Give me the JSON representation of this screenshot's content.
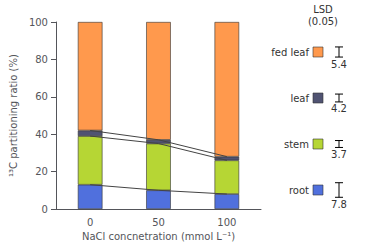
{
  "chart_data": {
    "type": "bar",
    "stacked": true,
    "categories": [
      "0",
      "50",
      "100"
    ],
    "xlabel": "NaCl concnetration (mmol L⁻¹)",
    "ylabel": "¹³C partitioning ratio (%)",
    "ylim": [
      0,
      100
    ],
    "yticks": [
      0,
      20,
      40,
      60,
      80,
      100
    ],
    "grid": false,
    "lsd_title": "LSD\n(0.05)",
    "series": [
      {
        "name": "root",
        "values": [
          13,
          10,
          8
        ],
        "lsd": 7.8
      },
      {
        "name": "stem",
        "values": [
          26,
          25,
          18
        ],
        "lsd": 3.7
      },
      {
        "name": "leaf",
        "values": [
          3,
          2,
          2
        ],
        "lsd": 4.2
      },
      {
        "name": "fed leaf",
        "values": [
          58,
          63,
          72
        ],
        "lsd": 5.4
      },
      {
        "type": "line",
        "color": "#444444",
        "values": [
          13,
          10,
          8
        ]
      },
      {
        "type": "line",
        "color": "#444444",
        "values": [
          39,
          35,
          26
        ]
      },
      {
        "type": "line",
        "color": "#444444",
        "values": [
          42,
          37,
          28
        ]
      }
    ]
  }
}
